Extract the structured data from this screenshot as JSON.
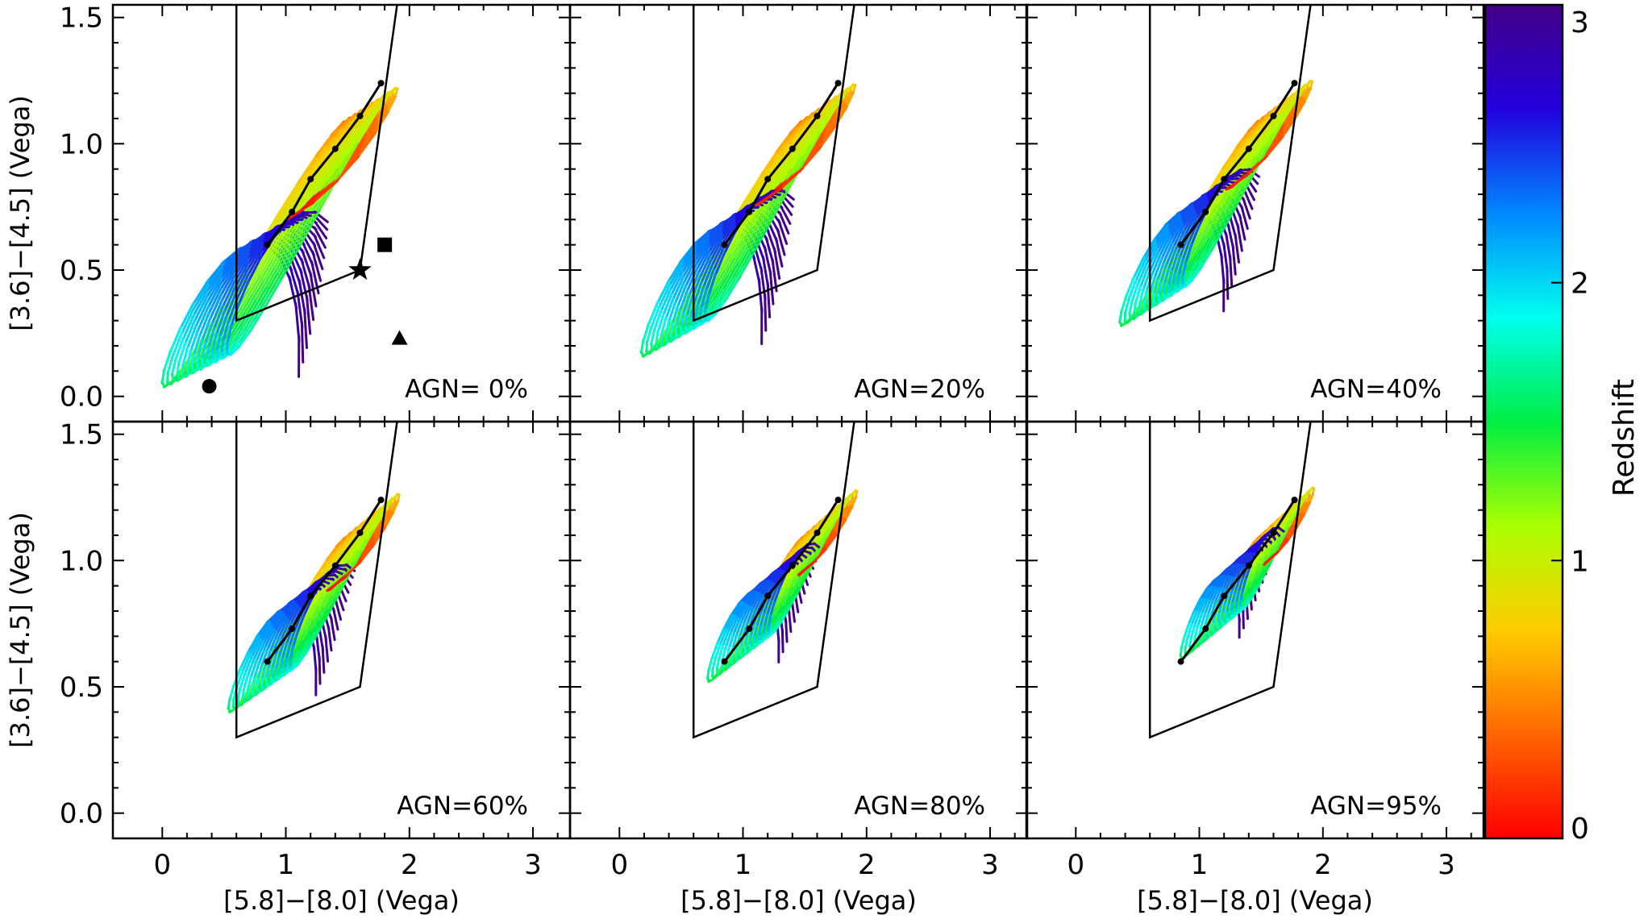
{
  "chart_data": {
    "type": "line",
    "xlabel": "[5.8]−[8.0] (Vega)",
    "ylabel": "[3.6]−[4.5] (Vega)",
    "xlim": [
      -0.4,
      3.3
    ],
    "ylim": [
      -0.1,
      1.55
    ],
    "xticks": [
      "0",
      "1",
      "2",
      "3"
    ],
    "yticks": [
      "0.0",
      "0.5",
      "1.0",
      "1.5"
    ],
    "colorbar": {
      "label": "Redshift",
      "range": [
        0,
        3
      ],
      "ticks": [
        "0",
        "1",
        "2",
        "3"
      ],
      "colors": [
        "#ff0000",
        "#ff6600",
        "#ffcc00",
        "#aaff00",
        "#00ee44",
        "#00ffee",
        "#0088ff",
        "#2200dd",
        "#440088"
      ]
    },
    "agn_wedge": [
      [
        0.6,
        1.55
      ],
      [
        0.6,
        0.3
      ],
      [
        1.6,
        0.5
      ],
      [
        1.9,
        1.55
      ]
    ],
    "power_law_line": [
      [
        0.85,
        0.6
      ],
      [
        1.05,
        0.73
      ],
      [
        1.2,
        0.86
      ],
      [
        1.4,
        0.98
      ],
      [
        1.6,
        1.11
      ],
      [
        1.77,
        1.24
      ]
    ],
    "markers": [
      {
        "name": "circle",
        "x": 0.38,
        "y": 0.04
      },
      {
        "name": "star",
        "x": 1.6,
        "y": 0.5
      },
      {
        "name": "square",
        "x": 1.8,
        "y": 0.6
      },
      {
        "name": "triangle",
        "x": 1.92,
        "y": 0.23
      }
    ],
    "panels": [
      {
        "label": "AGN=  0%",
        "agn_fraction": 0
      },
      {
        "label": "AGN=20%",
        "agn_fraction": 20
      },
      {
        "label": "AGN=40%",
        "agn_fraction": 40
      },
      {
        "label": "AGN=60%",
        "agn_fraction": 60
      },
      {
        "label": "AGN=80%",
        "agn_fraction": 80
      },
      {
        "label": "AGN=95%",
        "agn_fraction": 95
      }
    ]
  }
}
